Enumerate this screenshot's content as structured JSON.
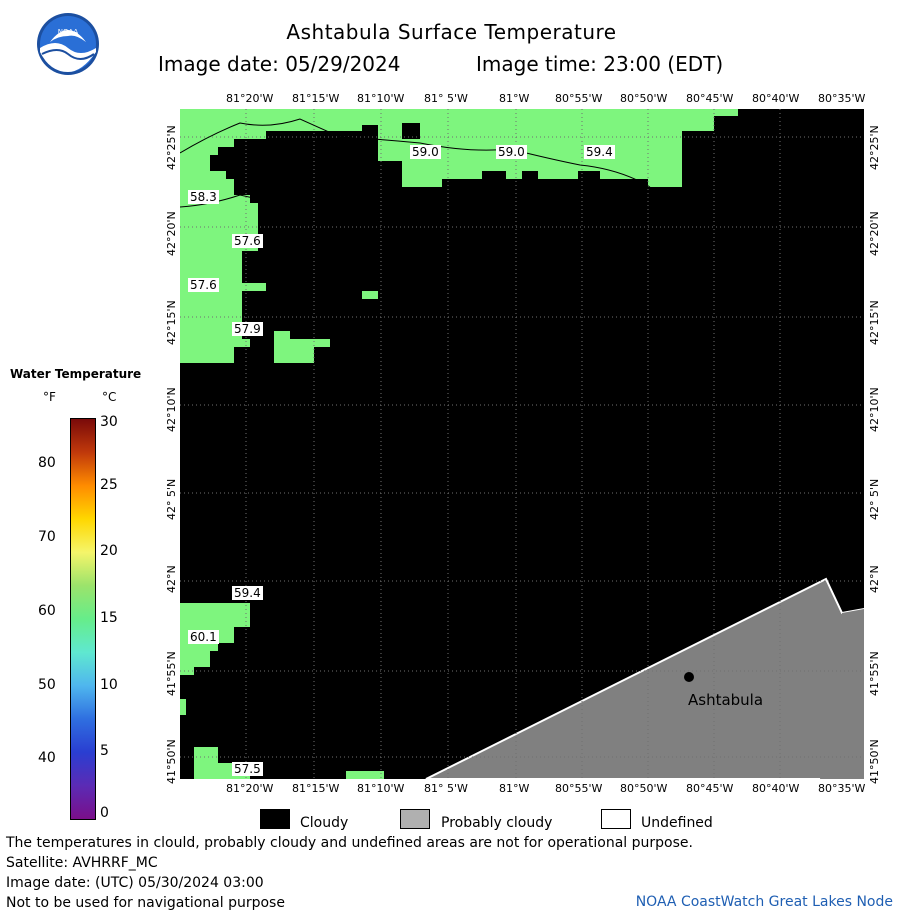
{
  "header": {
    "title": "Ashtabula Surface Temperature",
    "image_date_label": "Image date: 05/29/2024",
    "image_time_label": "Image time: 23:00 (EDT)"
  },
  "map": {
    "lon_ticks": [
      "81°20'W",
      "81°15'W",
      "81°10'W",
      "81° 5'W",
      "81°W",
      "80°55'W",
      "80°50'W",
      "80°45'W",
      "80°40'W",
      "80°35'W"
    ],
    "lat_ticks": [
      "42°25'N",
      "42°20'N",
      "42°15'N",
      "42°10'N",
      "42° 5'N",
      "42°N",
      "41°55'N",
      "41°50'N"
    ],
    "temp_labels": [
      "59.0",
      "59.0",
      "59.4",
      "58.3",
      "57.6",
      "57.6",
      "57.9",
      "59.4",
      "60.1",
      "57.5"
    ],
    "city": "Ashtabula",
    "colors": {
      "cloudy": "#000000",
      "probably_cloudy": "#808080",
      "undefined": "#ffffff",
      "water_57_60F": "#7ef57e"
    }
  },
  "legend": {
    "title": "Water Temperature",
    "unit_f": "°F",
    "unit_c": "°C",
    "f_ticks": [
      "80",
      "70",
      "60",
      "50",
      "40"
    ],
    "c_ticks": [
      "30",
      "25",
      "20",
      "15",
      "10",
      "5",
      "0"
    ],
    "colorbar_stops": [
      "#7a0a0a",
      "#c0390b",
      "#ff8c00",
      "#ffd700",
      "#f5f56a",
      "#9be36b",
      "#66ed8a",
      "#5fe8d0",
      "#4fb6ee",
      "#2f6fe0",
      "#2a3ed1",
      "#5b2bb5",
      "#7a0f8a"
    ]
  },
  "key": {
    "cloudy": "Cloudy",
    "probably_cloudy": "Probably cloudy",
    "undefined": "Undefined"
  },
  "footer": {
    "disclaimer": "The temperatures in clould, probably cloudy and undefined areas are not for operational purpose.",
    "satellite": "Satellite: AVHRRF_MC",
    "utc_date": "Image date: (UTC) 05/30/2024  03:00",
    "nav_warning": "Not to be used for navigational purpose",
    "credit": "NOAA CoastWatch Great Lakes Node"
  }
}
